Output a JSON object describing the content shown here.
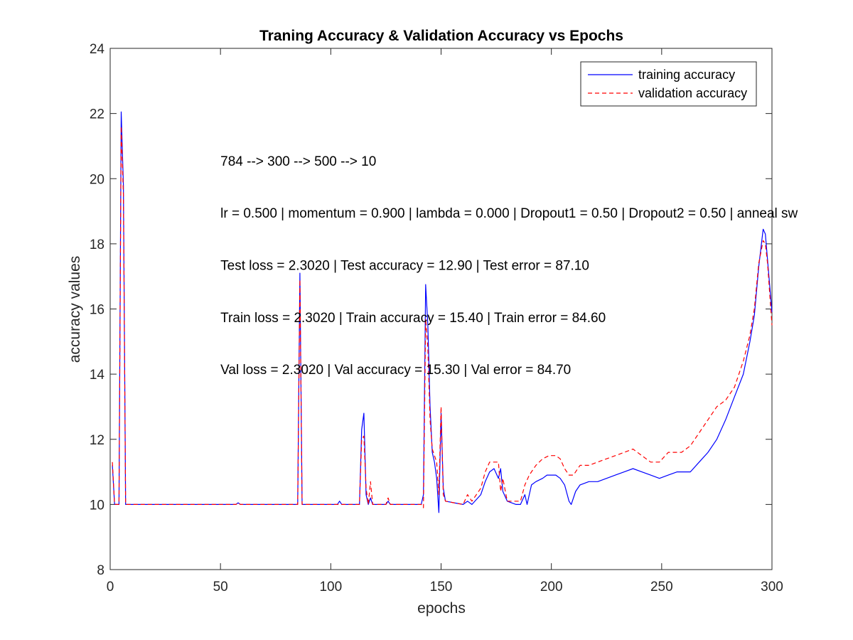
{
  "chart_data": {
    "type": "line",
    "title": "Traning Accuracy & Validation Accuracy vs Epochs",
    "xlabel": "epochs",
    "ylabel": "accuracy values",
    "xlim": [
      0,
      300
    ],
    "ylim": [
      8,
      24
    ],
    "xticks": [
      0,
      50,
      100,
      150,
      200,
      250,
      300
    ],
    "yticks": [
      8,
      10,
      12,
      14,
      16,
      18,
      20,
      22,
      24
    ],
    "grid": false,
    "legend_position": "top-right",
    "annotations": [
      {
        "text": "784 --> 300 --> 500 --> 10",
        "x": 50,
        "y": 20.4
      },
      {
        "text": "lr = 0.500 | momentum = 0.900 | lambda = 0.000 | Dropout1 = 0.50 | Dropout2 = 0.50 | anneal sw",
        "x": 50,
        "y": 18.8
      },
      {
        "text": "Test loss = 2.3020 | Test accuracy = 12.90 | Test error = 87.10",
        "x": 50,
        "y": 17.2
      },
      {
        "text": "Train loss = 2.3020 | Train accuracy = 15.40 | Train error = 84.60",
        "x": 50,
        "y": 15.6
      },
      {
        "text": "Val loss = 2.3020 | Val accuracy = 15.30 | Val error = 84.70",
        "x": 50,
        "y": 14.0
      }
    ],
    "series": [
      {
        "name": "training accuracy",
        "color": "#0000ff",
        "dash": "solid",
        "points": [
          [
            1,
            11.2
          ],
          [
            2,
            10
          ],
          [
            4,
            10
          ],
          [
            5,
            22.05
          ],
          [
            6,
            19.8
          ],
          [
            7,
            10
          ],
          [
            57,
            10
          ],
          [
            58,
            10.05
          ],
          [
            59,
            10
          ],
          [
            85,
            10
          ],
          [
            86,
            17.1
          ],
          [
            87,
            10
          ],
          [
            103,
            10
          ],
          [
            104,
            10.1
          ],
          [
            105,
            10
          ],
          [
            113,
            10
          ],
          [
            114,
            12.3
          ],
          [
            115,
            12.8
          ],
          [
            116,
            10.3
          ],
          [
            117,
            10
          ],
          [
            118,
            10.2
          ],
          [
            119,
            10
          ],
          [
            125,
            10
          ],
          [
            126,
            10.1
          ],
          [
            127,
            10
          ],
          [
            141,
            10
          ],
          [
            142,
            10.3
          ],
          [
            143,
            16.75
          ],
          [
            144,
            15.5
          ],
          [
            145,
            13
          ],
          [
            146,
            11.6
          ],
          [
            147,
            11.3
          ],
          [
            148,
            10.8
          ],
          [
            149,
            9.75
          ],
          [
            150,
            12.8
          ],
          [
            151,
            10.5
          ],
          [
            152,
            10.1
          ],
          [
            160,
            10
          ],
          [
            162,
            10.1
          ],
          [
            164,
            10
          ],
          [
            168,
            10.3
          ],
          [
            170,
            10.7
          ],
          [
            172,
            11
          ],
          [
            174,
            11.1
          ],
          [
            176,
            10.8
          ],
          [
            177,
            11.1
          ],
          [
            178,
            10.4
          ],
          [
            180,
            10.1
          ],
          [
            184,
            10
          ],
          [
            186,
            10
          ],
          [
            188,
            10.3
          ],
          [
            189,
            10
          ],
          [
            191,
            10.6
          ],
          [
            193,
            10.7
          ],
          [
            196,
            10.8
          ],
          [
            198,
            10.9
          ],
          [
            202,
            10.9
          ],
          [
            204,
            10.8
          ],
          [
            206,
            10.6
          ],
          [
            208,
            10.1
          ],
          [
            209,
            10
          ],
          [
            211,
            10.4
          ],
          [
            213,
            10.6
          ],
          [
            217,
            10.7
          ],
          [
            221,
            10.7
          ],
          [
            225,
            10.8
          ],
          [
            229,
            10.9
          ],
          [
            233,
            11
          ],
          [
            237,
            11.1
          ],
          [
            241,
            11
          ],
          [
            245,
            10.9
          ],
          [
            249,
            10.8
          ],
          [
            253,
            10.9
          ],
          [
            257,
            11
          ],
          [
            263,
            11
          ],
          [
            267,
            11.3
          ],
          [
            271,
            11.6
          ],
          [
            275,
            12
          ],
          [
            279,
            12.6
          ],
          [
            283,
            13.3
          ],
          [
            287,
            14
          ],
          [
            290,
            15
          ],
          [
            292,
            15.8
          ],
          [
            294,
            17.3
          ],
          [
            296,
            18.45
          ],
          [
            297,
            18.3
          ],
          [
            298,
            17.5
          ],
          [
            300,
            15.9
          ]
        ]
      },
      {
        "name": "validation accuracy",
        "color": "#ff0000",
        "dash": "dashed",
        "points": [
          [
            1,
            11.3
          ],
          [
            2,
            10
          ],
          [
            4,
            10
          ],
          [
            5,
            21.6
          ],
          [
            6,
            19.5
          ],
          [
            7,
            10
          ],
          [
            57,
            10
          ],
          [
            58,
            10.05
          ],
          [
            59,
            10
          ],
          [
            85,
            10
          ],
          [
            86,
            16.9
          ],
          [
            87,
            10
          ],
          [
            113,
            10
          ],
          [
            114,
            12
          ],
          [
            115,
            12.1
          ],
          [
            116,
            10.5
          ],
          [
            117,
            10
          ],
          [
            118,
            10.7
          ],
          [
            119,
            10
          ],
          [
            125,
            10
          ],
          [
            126,
            10.2
          ],
          [
            127,
            10
          ],
          [
            141,
            10
          ],
          [
            142,
            9.9
          ],
          [
            143,
            15.7
          ],
          [
            144,
            14.8
          ],
          [
            145,
            12.6
          ],
          [
            146,
            11.7
          ],
          [
            147,
            11.5
          ],
          [
            148,
            11.3
          ],
          [
            149,
            10.3
          ],
          [
            150,
            13
          ],
          [
            151,
            10.3
          ],
          [
            152,
            10.1
          ],
          [
            160,
            10
          ],
          [
            162,
            10.3
          ],
          [
            164,
            10.1
          ],
          [
            168,
            10.5
          ],
          [
            170,
            11
          ],
          [
            172,
            11.3
          ],
          [
            176,
            11.3
          ],
          [
            177,
            10.4
          ],
          [
            178,
            10.8
          ],
          [
            180,
            10.1
          ],
          [
            184,
            10.1
          ],
          [
            186,
            10.1
          ],
          [
            188,
            10.6
          ],
          [
            190,
            10.9
          ],
          [
            193,
            11.2
          ],
          [
            196,
            11.4
          ],
          [
            199,
            11.5
          ],
          [
            202,
            11.5
          ],
          [
            204,
            11.4
          ],
          [
            206,
            11.1
          ],
          [
            208,
            10.9
          ],
          [
            210,
            10.9
          ],
          [
            213,
            11.2
          ],
          [
            217,
            11.2
          ],
          [
            221,
            11.3
          ],
          [
            225,
            11.4
          ],
          [
            229,
            11.5
          ],
          [
            233,
            11.6
          ],
          [
            237,
            11.7
          ],
          [
            241,
            11.5
          ],
          [
            245,
            11.3
          ],
          [
            249,
            11.3
          ],
          [
            253,
            11.6
          ],
          [
            259,
            11.6
          ],
          [
            263,
            11.8
          ],
          [
            267,
            12.2
          ],
          [
            271,
            12.6
          ],
          [
            275,
            13
          ],
          [
            279,
            13.2
          ],
          [
            283,
            13.6
          ],
          [
            287,
            14.4
          ],
          [
            290,
            15.2
          ],
          [
            292,
            16
          ],
          [
            294,
            17.4
          ],
          [
            296,
            18.1
          ],
          [
            297,
            18
          ],
          [
            298,
            17.4
          ],
          [
            300,
            15.5
          ]
        ]
      }
    ]
  }
}
